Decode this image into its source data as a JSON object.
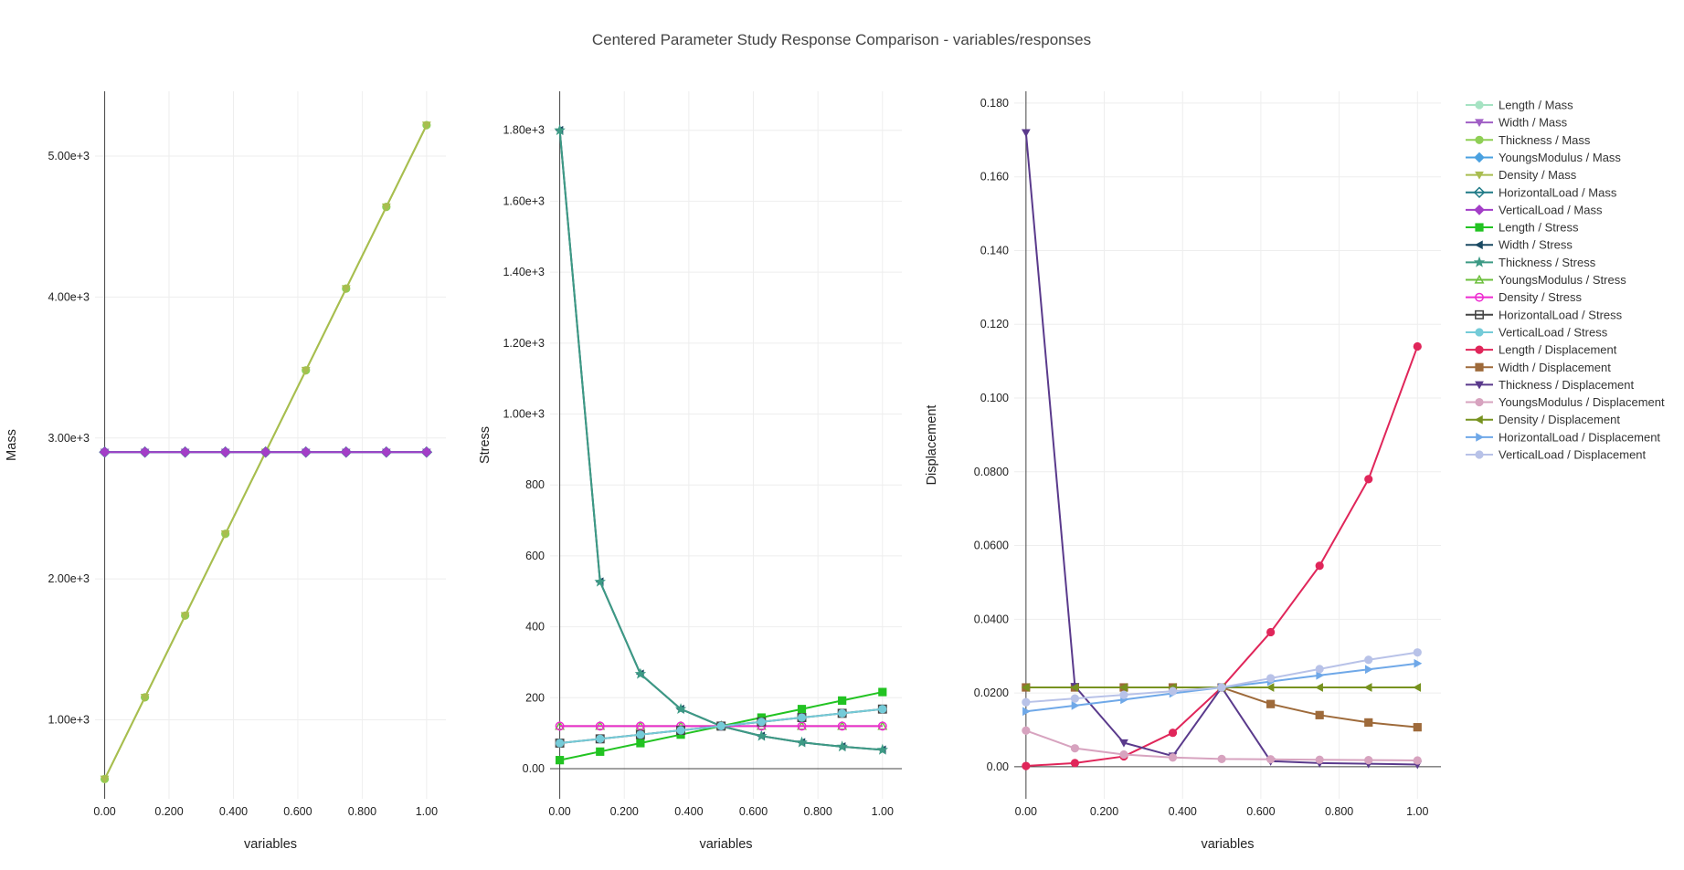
{
  "title": "Centered Parameter Study Response Comparison - variables/responses",
  "x": [
    0,
    0.125,
    0.25,
    0.375,
    0.5,
    0.625,
    0.75,
    0.875,
    1.0
  ],
  "chart_data": [
    {
      "type": "line",
      "xlabel": "variables",
      "ylabel": "Mass",
      "xlim": [
        -0.03,
        1.06
      ],
      "ylim": [
        440,
        5460
      ],
      "xticks": [
        0,
        0.2,
        0.4,
        0.6,
        0.8,
        1.0
      ],
      "xtick_labels": [
        "0.00",
        "0.200",
        "0.400",
        "0.600",
        "0.800",
        "1.00"
      ],
      "yticks": [
        1000,
        2000,
        3000,
        4000,
        5000
      ],
      "ytick_labels": [
        "1.00e+3",
        "2.00e+3",
        "3.00e+3",
        "4.00e+3",
        "5.00e+3"
      ],
      "grid": true,
      "series": [
        {
          "name": "Length / Mass",
          "color": "#a6e3c3",
          "marker": "circle",
          "values": [
            2900,
            2900,
            2900,
            2900,
            2900,
            2900,
            2900,
            2900,
            2900
          ]
        },
        {
          "name": "Width / Mass",
          "color": "#a05fc5",
          "marker": "triangle-down",
          "values": [
            2900,
            2900,
            2900,
            2900,
            2900,
            2900,
            2900,
            2900,
            2900
          ]
        },
        {
          "name": "Thickness / Mass",
          "color": "#8fcf55",
          "marker": "circle",
          "values": [
            580,
            1160,
            1740,
            2320,
            2900,
            3480,
            4060,
            4640,
            5220
          ]
        },
        {
          "name": "YoungsModulus / Mass",
          "color": "#4aa1e0",
          "marker": "diamond",
          "values": [
            2900,
            2900,
            2900,
            2900,
            2900,
            2900,
            2900,
            2900,
            2900
          ]
        },
        {
          "name": "Density / Mass",
          "color": "#a9bd4f",
          "marker": "triangle-down",
          "values": [
            580,
            1160,
            1740,
            2320,
            2900,
            3480,
            4060,
            4640,
            5220
          ]
        },
        {
          "name": "HorizontalLoad / Mass",
          "color": "#1f7a86",
          "marker": "diamond-open",
          "values": [
            2900,
            2900,
            2900,
            2900,
            2900,
            2900,
            2900,
            2900,
            2900
          ]
        },
        {
          "name": "VerticalLoad / Mass",
          "color": "#a33ec7",
          "marker": "diamond",
          "values": [
            2900,
            2900,
            2900,
            2900,
            2900,
            2900,
            2900,
            2900,
            2900
          ]
        }
      ]
    },
    {
      "type": "line",
      "xlabel": "variables",
      "ylabel": "Stress",
      "xlim": [
        -0.03,
        1.06
      ],
      "ylim": [
        -85,
        1910
      ],
      "xticks": [
        0,
        0.2,
        0.4,
        0.6,
        0.8,
        1.0
      ],
      "xtick_labels": [
        "0.00",
        "0.200",
        "0.400",
        "0.600",
        "0.800",
        "1.00"
      ],
      "yticks": [
        0,
        200,
        400,
        600,
        800,
        1000,
        1200,
        1400,
        1600,
        1800
      ],
      "ytick_labels": [
        "0.00",
        "200",
        "400",
        "600",
        "800",
        "1.00e+3",
        "1.20e+3",
        "1.40e+3",
        "1.60e+3",
        "1.80e+3"
      ],
      "grid": true,
      "series": [
        {
          "name": "Length / Stress",
          "color": "#22c322",
          "marker": "square",
          "values": [
            24,
            48,
            72,
            96,
            120,
            144,
            168,
            192,
            216
          ]
        },
        {
          "name": "Width / Stress",
          "color": "#1b4a63",
          "marker": "triangle-left",
          "values": [
            1800,
            527,
            267,
            168,
            120,
            92,
            74,
            62,
            53
          ]
        },
        {
          "name": "Thickness / Stress",
          "color": "#3d9a85",
          "marker": "star",
          "values": [
            1800,
            527,
            267,
            168,
            120,
            92,
            74,
            62,
            53
          ]
        },
        {
          "name": "YoungsModulus / Stress",
          "color": "#6cbf3c",
          "marker": "triangle-up-open",
          "values": [
            120,
            120,
            120,
            120,
            120,
            120,
            120,
            120,
            120
          ]
        },
        {
          "name": "Density / Stress",
          "color": "#ee2bd0",
          "marker": "circle-open",
          "values": [
            120,
            120,
            120,
            120,
            120,
            120,
            120,
            120,
            120
          ]
        },
        {
          "name": "HorizontalLoad / Stress",
          "color": "#444444",
          "marker": "square-open",
          "values": [
            72,
            84,
            96,
            108,
            120,
            132,
            144,
            156,
            168
          ]
        },
        {
          "name": "VerticalLoad / Stress",
          "color": "#74cbd8",
          "marker": "circle",
          "values": [
            72,
            84,
            96,
            108,
            120,
            132,
            144,
            156,
            168
          ]
        }
      ]
    },
    {
      "type": "line",
      "xlabel": "variables",
      "ylabel": "Displacement",
      "xlim": [
        -0.03,
        1.06
      ],
      "ylim": [
        -0.0087,
        0.1832
      ],
      "xticks": [
        0,
        0.2,
        0.4,
        0.6,
        0.8,
        1.0
      ],
      "xtick_labels": [
        "0.00",
        "0.200",
        "0.400",
        "0.600",
        "0.800",
        "1.00"
      ],
      "yticks": [
        0,
        0.02,
        0.04,
        0.06,
        0.08,
        0.1,
        0.12,
        0.14,
        0.16,
        0.18
      ],
      "ytick_labels": [
        "0.00",
        "0.0200",
        "0.0400",
        "0.0600",
        "0.0800",
        "0.100",
        "0.120",
        "0.140",
        "0.160",
        "0.180"
      ],
      "grid": true,
      "series": [
        {
          "name": "Length / Displacement",
          "color": "#e0265a",
          "marker": "circle",
          "values": [
            0.0002,
            0.001,
            0.0028,
            0.0092,
            0.0215,
            0.0365,
            0.0545,
            0.078,
            0.114
          ]
        },
        {
          "name": "Width / Displacement",
          "color": "#9e6a3a",
          "marker": "square",
          "values": [
            0.0215,
            0.0215,
            0.0215,
            0.0215,
            0.0215,
            0.017,
            0.014,
            0.012,
            0.0107
          ]
        },
        {
          "name": "Thickness / Displacement",
          "color": "#5a3a8c",
          "marker": "triangle-down",
          "values": [
            0.172,
            0.0218,
            0.0065,
            0.0029,
            0.0215,
            0.0015,
            0.001,
            0.0008,
            0.0006
          ]
        },
        {
          "name": "YoungsModulus / Displacement",
          "color": "#d7a3bf",
          "marker": "circle",
          "values": [
            0.0098,
            0.005,
            0.0033,
            0.0025,
            0.0021,
            0.002,
            0.0019,
            0.0018,
            0.0017
          ]
        },
        {
          "name": "Density / Displacement",
          "color": "#77921f",
          "marker": "triangle-left",
          "values": [
            0.0215,
            0.0215,
            0.0215,
            0.0215,
            0.0215,
            0.0215,
            0.0215,
            0.0215,
            0.0215
          ]
        },
        {
          "name": "HorizontalLoad / Displacement",
          "color": "#6fa8e8",
          "marker": "triangle-right",
          "values": [
            0.015,
            0.0166,
            0.0182,
            0.0199,
            0.0215,
            0.0231,
            0.0248,
            0.0264,
            0.028
          ]
        },
        {
          "name": "VerticalLoad / Displacement",
          "color": "#b8c2e8",
          "marker": "circle",
          "values": [
            0.0175,
            0.0185,
            0.0195,
            0.0205,
            0.0215,
            0.024,
            0.0265,
            0.029,
            0.031
          ]
        }
      ]
    }
  ]
}
